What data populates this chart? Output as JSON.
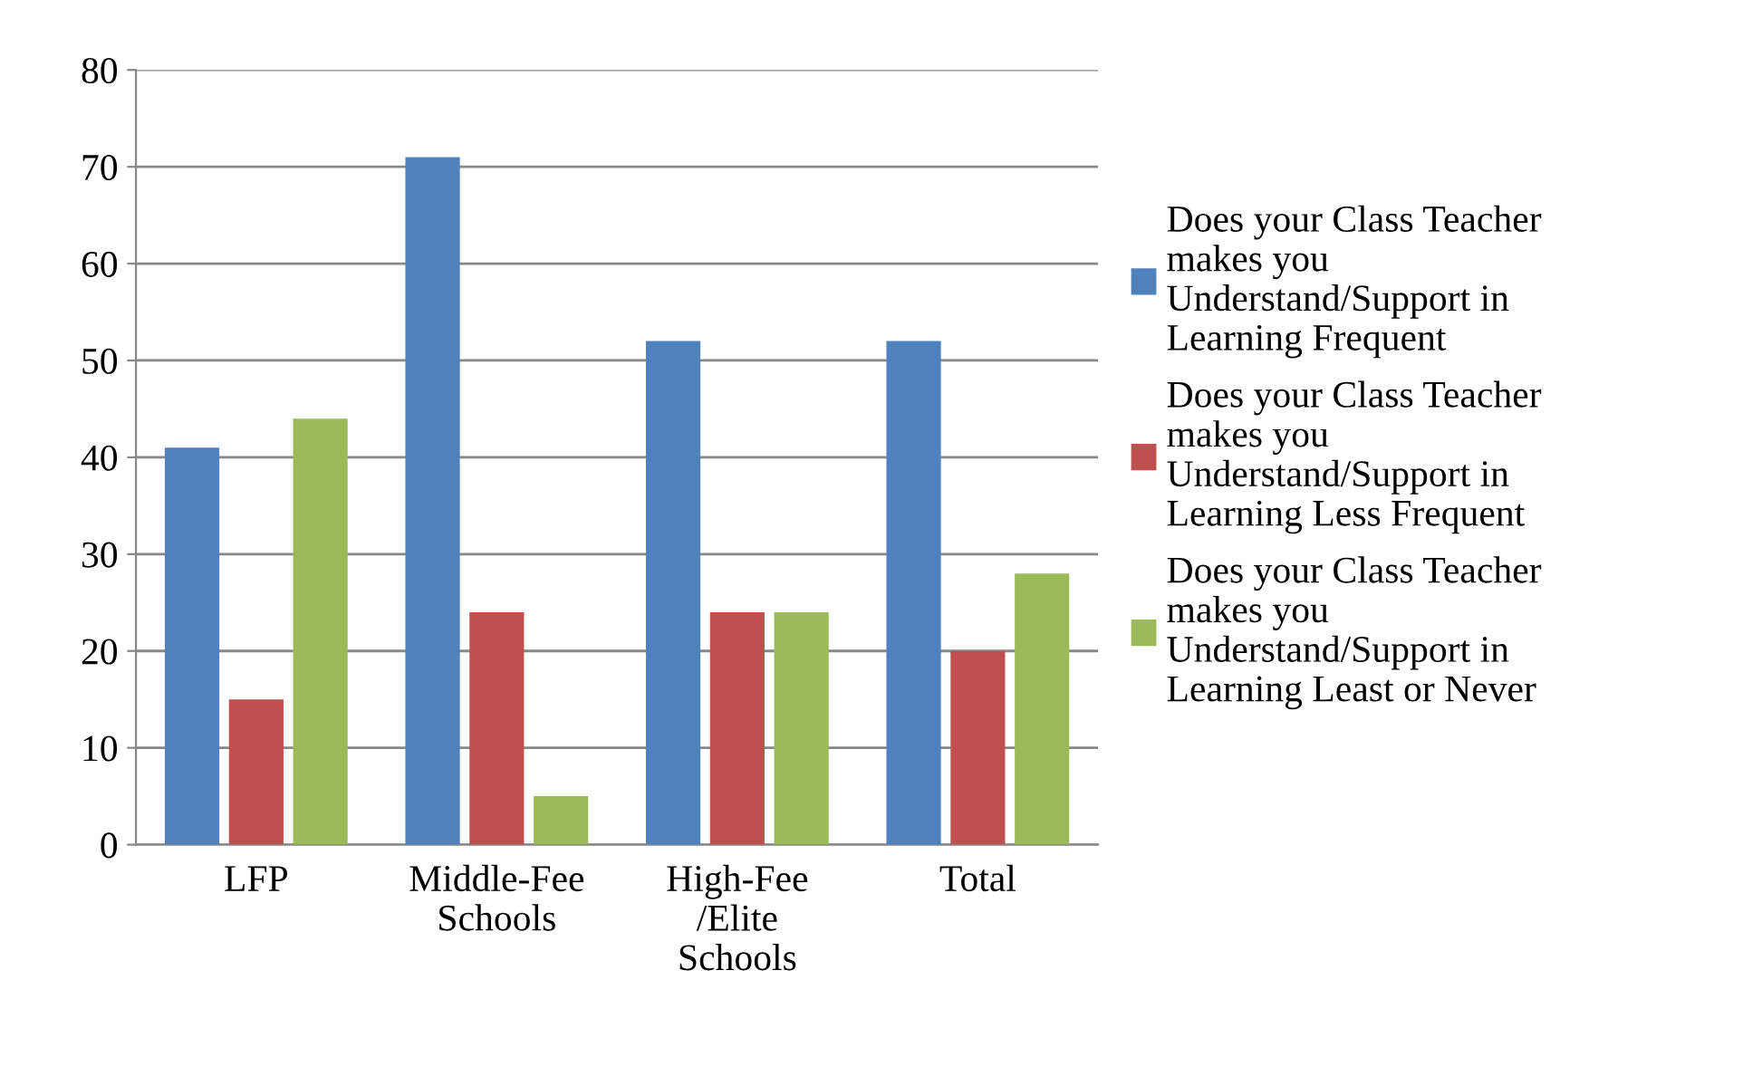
{
  "chart_data": {
    "type": "bar",
    "categories": [
      "LFP",
      "Middle-Fee\nSchools",
      "High-Fee\n/Elite\nSchools",
      "Total"
    ],
    "series": [
      {
        "name": "Does your Class Teacher\nmakes you\nUnderstand/Support in\nLearning Frequent",
        "color": "#4f81bd",
        "values": [
          41,
          71,
          52,
          52
        ]
      },
      {
        "name": "Does your Class Teacher\nmakes you\nUnderstand/Support in\nLearning Less Frequent",
        "color": "#c0504d",
        "values": [
          15,
          24,
          24,
          20
        ]
      },
      {
        "name": "Does your Class Teacher\nmakes you\nUnderstand/Support in\nLearning Least or Never",
        "color": "#9bbb59",
        "values": [
          44,
          5,
          24,
          28
        ]
      }
    ],
    "ylim": [
      0,
      80
    ],
    "yticks": [
      0,
      10,
      20,
      30,
      40,
      50,
      60,
      70,
      80
    ],
    "grid": "y",
    "legend": "right"
  }
}
